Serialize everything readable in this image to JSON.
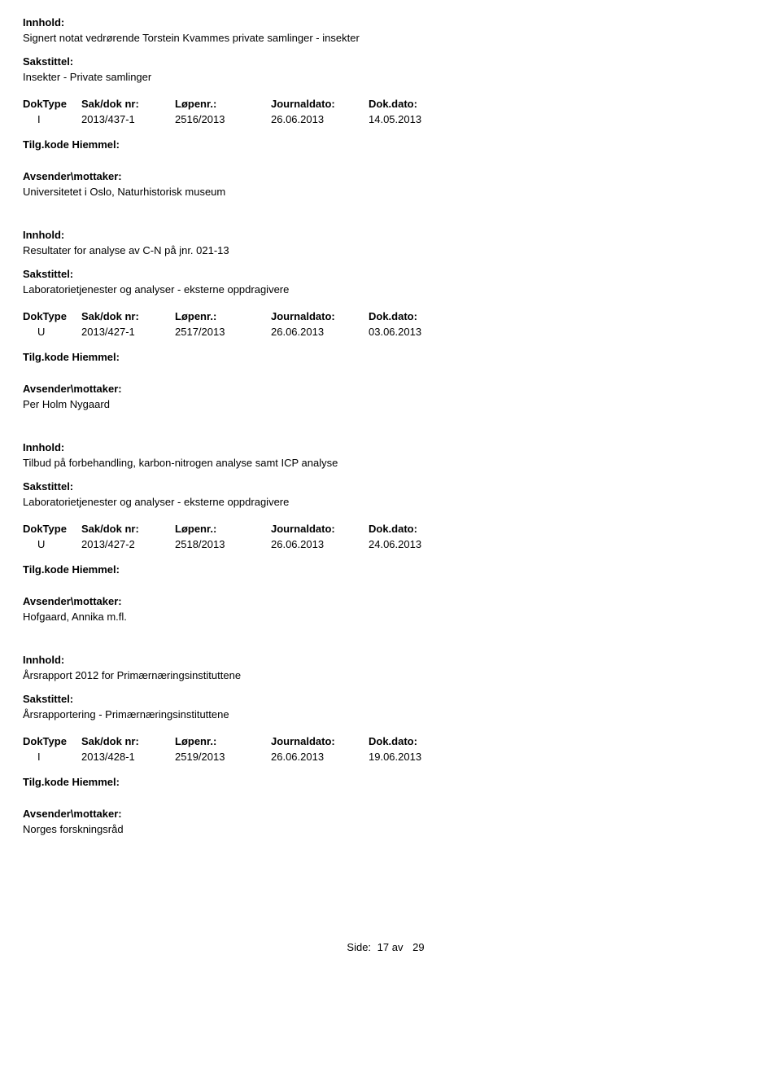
{
  "labels": {
    "innhold": "Innhold:",
    "sakstittel": "Sakstittel:",
    "doktype": "DokType",
    "saknr": "Sak/dok nr:",
    "lopenr": "Løpenr.:",
    "journaldato": "Journaldato:",
    "dokdato": "Dok.dato:",
    "tilgkode": "Tilg.kode",
    "hiemmel": "Hiemmel:",
    "avsender": "Avsender\\mottaker:",
    "side": "Side:",
    "av": "av"
  },
  "records": [
    {
      "innhold": "Signert notat vedrørende Torstein Kvammes private samlinger - insekter",
      "sakstittel": "Insekter - Private samlinger",
      "doktype": "I",
      "saknr": "2013/437-1",
      "lopenr": "2516/2013",
      "journaldato": "26.06.2013",
      "dokdato": "14.05.2013",
      "avsender": "Universitetet i Oslo, Naturhistorisk museum"
    },
    {
      "innhold": "Resultater for analyse av C-N på jnr. 021-13",
      "sakstittel": "Laboratorietjenester og analyser - eksterne oppdragivere",
      "doktype": "U",
      "saknr": "2013/427-1",
      "lopenr": "2517/2013",
      "journaldato": "26.06.2013",
      "dokdato": "03.06.2013",
      "avsender": "Per Holm Nygaard"
    },
    {
      "innhold": "Tilbud på forbehandling, karbon-nitrogen analyse samt ICP analyse",
      "sakstittel": "Laboratorietjenester og analyser - eksterne oppdragivere",
      "doktype": "U",
      "saknr": "2013/427-2",
      "lopenr": "2518/2013",
      "journaldato": "26.06.2013",
      "dokdato": "24.06.2013",
      "avsender": "Hofgaard, Annika m.fl."
    },
    {
      "innhold": "Årsrapport 2012 for Primærnæringsinstituttene",
      "sakstittel": "Årsrapportering - Primærnæringsinstituttene",
      "doktype": "I",
      "saknr": "2013/428-1",
      "lopenr": "2519/2013",
      "journaldato": "26.06.2013",
      "dokdato": "19.06.2013",
      "avsender": "Norges forskningsråd"
    }
  ],
  "footer": {
    "current": "17",
    "total": "29"
  }
}
